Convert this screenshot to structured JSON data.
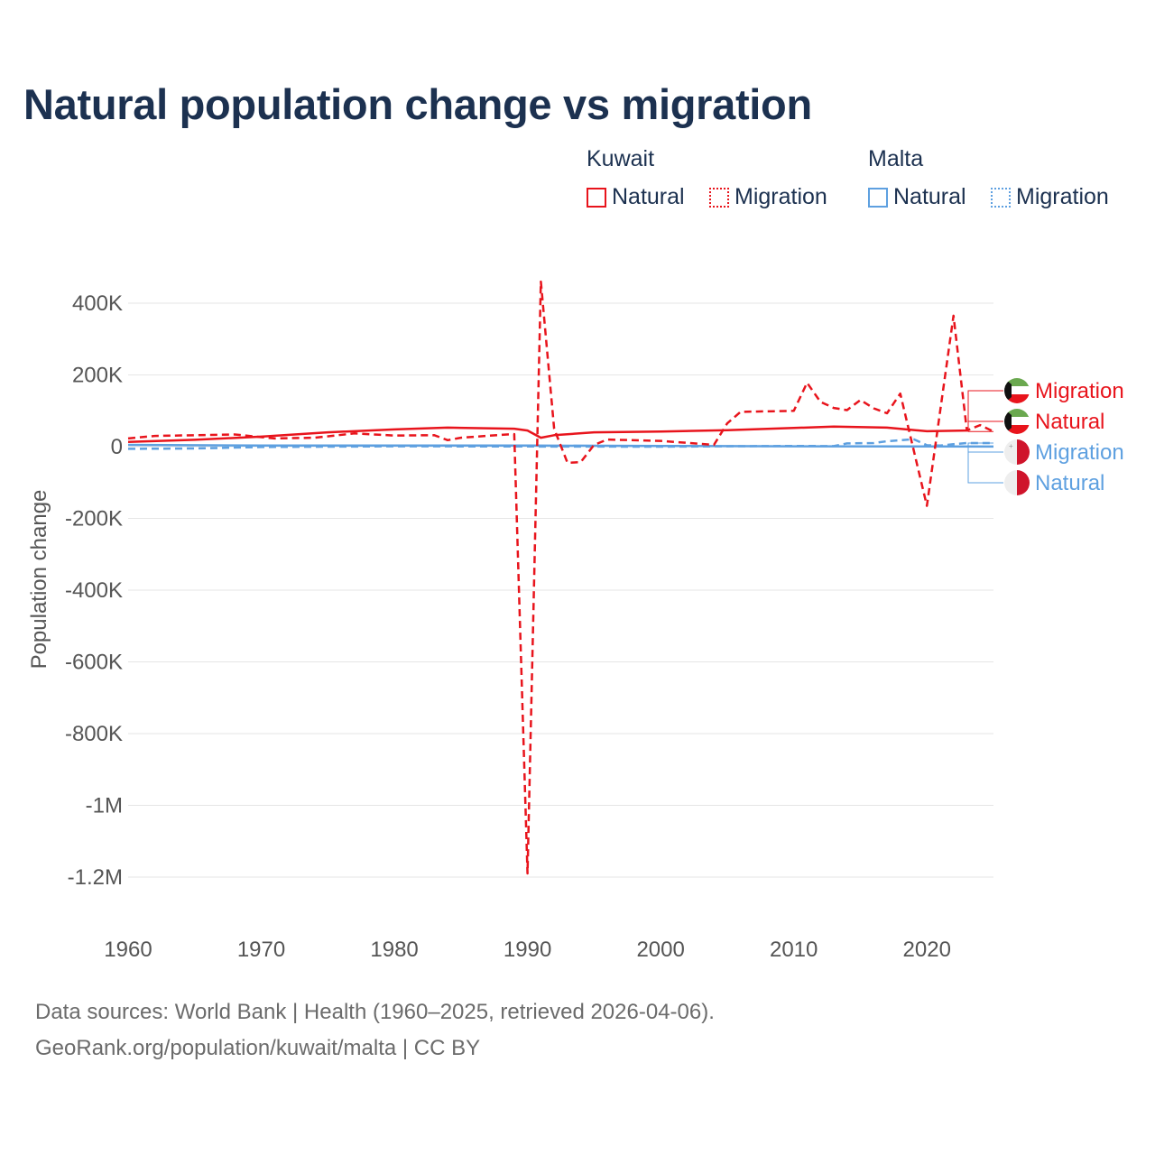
{
  "title": "Natural population change vs migration",
  "legend": {
    "groups": [
      {
        "name": "Kuwait",
        "items": [
          {
            "label": "Natural",
            "style": "solid",
            "color": "#e8141c"
          },
          {
            "label": "Migration",
            "style": "dashed",
            "color": "#e8141c"
          }
        ]
      },
      {
        "name": "Malta",
        "items": [
          {
            "label": "Natural",
            "style": "solid",
            "color": "#5ea0e0"
          },
          {
            "label": "Migration",
            "style": "dashed",
            "color": "#5ea0e0"
          }
        ]
      }
    ]
  },
  "end_labels": [
    {
      "label": "Migration",
      "country": "Kuwait",
      "color": "#e8141c",
      "flag": "kuwait-flag-icon"
    },
    {
      "label": "Natural",
      "country": "Kuwait",
      "color": "#e8141c",
      "flag": "kuwait-flag-icon"
    },
    {
      "label": "Migration",
      "country": "Malta",
      "color": "#5ea0e0",
      "flag": "malta-flag-icon"
    },
    {
      "label": "Natural",
      "country": "Malta",
      "color": "#5ea0e0",
      "flag": "malta-flag-icon"
    }
  ],
  "footer": {
    "line1": "Data sources: World Bank | Health (1960–2025, retrieved 2026-04-06).",
    "line2": "GeoRank.org/population/kuwait/malta | CC BY"
  },
  "chart_data": {
    "type": "line",
    "title": "Natural population change vs migration",
    "xlabel": "",
    "ylabel": "Population change",
    "xlim": [
      1960,
      2025
    ],
    "ylim": [
      -1300000,
      460000
    ],
    "x_ticks": [
      {
        "value": 1960,
        "label": "1960"
      },
      {
        "value": 1970,
        "label": "1970"
      },
      {
        "value": 1980,
        "label": "1980"
      },
      {
        "value": 1990,
        "label": "1990"
      },
      {
        "value": 2000,
        "label": "2000"
      },
      {
        "value": 2010,
        "label": "2010"
      },
      {
        "value": 2020,
        "label": "2020"
      }
    ],
    "y_ticks": [
      {
        "value": 400000,
        "label": "400K"
      },
      {
        "value": 200000,
        "label": "200K"
      },
      {
        "value": 0,
        "label": "0"
      },
      {
        "value": -200000,
        "label": "-200K"
      },
      {
        "value": -400000,
        "label": "-400K"
      },
      {
        "value": -600000,
        "label": "-600K"
      },
      {
        "value": -800000,
        "label": "-800K"
      },
      {
        "value": -1000000,
        "label": "-1M"
      },
      {
        "value": -1200000,
        "label": "-1.2M"
      }
    ],
    "grid": true,
    "series": [
      {
        "name": "Kuwait Natural",
        "color": "#e8141c",
        "dash": "solid",
        "points": [
          [
            1960,
            13000
          ],
          [
            1965,
            19000
          ],
          [
            1970,
            28000
          ],
          [
            1975,
            40000
          ],
          [
            1980,
            48000
          ],
          [
            1984,
            53000
          ],
          [
            1989,
            50000
          ],
          [
            1990,
            45000
          ],
          [
            1991,
            25000
          ],
          [
            1992,
            32000
          ],
          [
            1995,
            40000
          ],
          [
            2000,
            42000
          ],
          [
            2005,
            46000
          ],
          [
            2010,
            52000
          ],
          [
            2013,
            56000
          ],
          [
            2017,
            53000
          ],
          [
            2020,
            43000
          ],
          [
            2023,
            45000
          ]
        ]
      },
      {
        "name": "Kuwait Migration",
        "color": "#e8141c",
        "dash": "dashed",
        "points": [
          [
            1960,
            23000
          ],
          [
            1962,
            30000
          ],
          [
            1968,
            34000
          ],
          [
            1971,
            23000
          ],
          [
            1974,
            25000
          ],
          [
            1977,
            37000
          ],
          [
            1980,
            31000
          ],
          [
            1983,
            32000
          ],
          [
            1984,
            18000
          ],
          [
            1985,
            25000
          ],
          [
            1988,
            33000
          ],
          [
            1989,
            35000
          ],
          [
            1990,
            -1190000
          ],
          [
            1991,
            460000
          ],
          [
            1992,
            50000
          ],
          [
            1993,
            -45000
          ],
          [
            1994,
            -43000
          ],
          [
            1995,
            5000
          ],
          [
            1996,
            20000
          ],
          [
            2000,
            16000
          ],
          [
            2004,
            5000
          ],
          [
            2005,
            65000
          ],
          [
            2006,
            97000
          ],
          [
            2010,
            100000
          ],
          [
            2011,
            178000
          ],
          [
            2012,
            125000
          ],
          [
            2013,
            108000
          ],
          [
            2014,
            102000
          ],
          [
            2015,
            130000
          ],
          [
            2016,
            107000
          ],
          [
            2017,
            93000
          ],
          [
            2018,
            148000
          ],
          [
            2020,
            -165000
          ],
          [
            2022,
            365000
          ],
          [
            2023,
            45000
          ],
          [
            2024,
            60000
          ],
          [
            2025,
            42000
          ]
        ]
      },
      {
        "name": "Malta Natural",
        "color": "#5ea0e0",
        "dash": "solid",
        "points": [
          [
            1960,
            5000
          ],
          [
            1970,
            3000
          ],
          [
            1980,
            3000
          ],
          [
            1990,
            3000
          ],
          [
            2000,
            2000
          ],
          [
            2010,
            1000
          ],
          [
            2020,
            700
          ],
          [
            2025,
            300
          ]
        ]
      },
      {
        "name": "Malta Migration",
        "color": "#5ea0e0",
        "dash": "dashed",
        "points": [
          [
            1960,
            -6000
          ],
          [
            1965,
            -5000
          ],
          [
            1970,
            -1000
          ],
          [
            1980,
            1000
          ],
          [
            1990,
            500
          ],
          [
            2000,
            0
          ],
          [
            2010,
            2000
          ],
          [
            2013,
            1500
          ],
          [
            2014,
            9000
          ],
          [
            2016,
            10000
          ],
          [
            2017,
            15000
          ],
          [
            2019,
            21000
          ],
          [
            2020,
            4000
          ],
          [
            2021,
            3000
          ],
          [
            2022,
            7000
          ],
          [
            2023,
            10000
          ],
          [
            2025,
            10000
          ]
        ]
      }
    ]
  }
}
